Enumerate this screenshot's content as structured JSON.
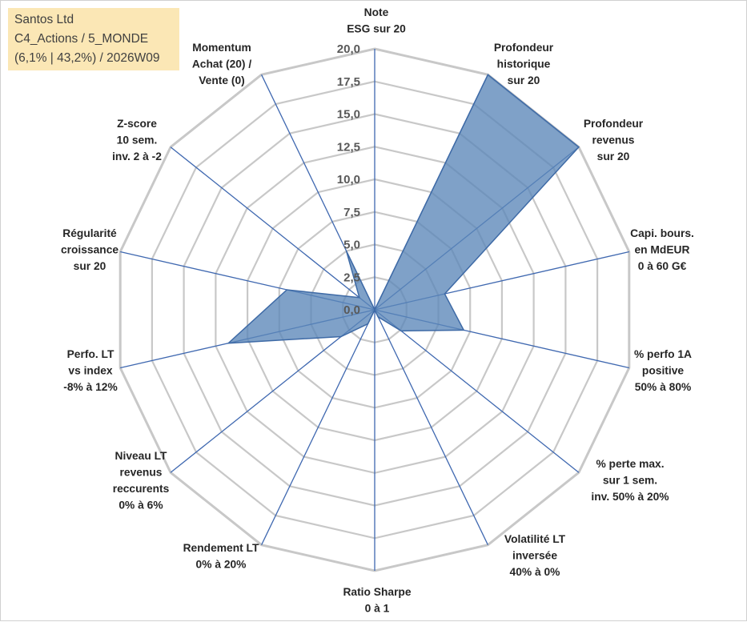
{
  "info": {
    "line1": "Santos Ltd",
    "line2": "C4_Actions / 5_MONDE",
    "line3": "(6,1% | 43,2%) / 2026W09"
  },
  "chart_data": {
    "type": "radar",
    "title": "",
    "rmin": 0,
    "rmax": 20,
    "ticks": [
      "0,0",
      "2,5",
      "5,0",
      "7,5",
      "10,0",
      "12,5",
      "15,0",
      "17,5",
      "20,0"
    ],
    "grid": true,
    "colors": {
      "fill": "#5b86b8",
      "stroke": "#3e6aa6",
      "spoke": "#3f68b0",
      "grid": "#c8c8c8"
    },
    "axes": [
      {
        "label": [
          "Note",
          "ESG sur 20"
        ],
        "value": 0.0
      },
      {
        "label": [
          "Profondeur",
          "historique",
          "sur 20"
        ],
        "value": 20.0
      },
      {
        "label": [
          "Profondeur",
          "revenus",
          "sur 20"
        ],
        "value": 20.0
      },
      {
        "label": [
          "Capi. bours.",
          "en MdEUR",
          "0 à 60 G€"
        ],
        "value": 5.5
      },
      {
        "label": [
          "% perfo 1A",
          "positive",
          "50% à 80%"
        ],
        "value": 7.0
      },
      {
        "label": [
          "% perte max.",
          "sur 1 sem.",
          "inv. 50% à 20%"
        ],
        "value": 2.6
      },
      {
        "label": [
          "Volatilité LT",
          "inversée",
          "40% à 0%"
        ],
        "value": 0.6
      },
      {
        "label": [
          "Ratio Sharpe",
          "0 à 1"
        ],
        "value": 0.0
      },
      {
        "label": [
          "Rendement LT",
          "0% à 20%"
        ],
        "value": 1.2
      },
      {
        "label": [
          "Niveau LT",
          "revenus",
          "reccurents",
          "0% à 6%"
        ],
        "value": 3.3
      },
      {
        "label": [
          "Perfo. LT",
          "vs index",
          "-8% à 12%"
        ],
        "value": 11.5
      },
      {
        "label": [
          "Régularité",
          "croissance",
          "sur 20"
        ],
        "value": 6.9
      },
      {
        "label": [
          "Z-score",
          "10 sem.",
          "inv. 2 à -2"
        ],
        "value": 1.5
      },
      {
        "label": [
          "Momentum",
          "Achat (20) /",
          "Vente (0)"
        ],
        "value": 5.0
      }
    ]
  }
}
